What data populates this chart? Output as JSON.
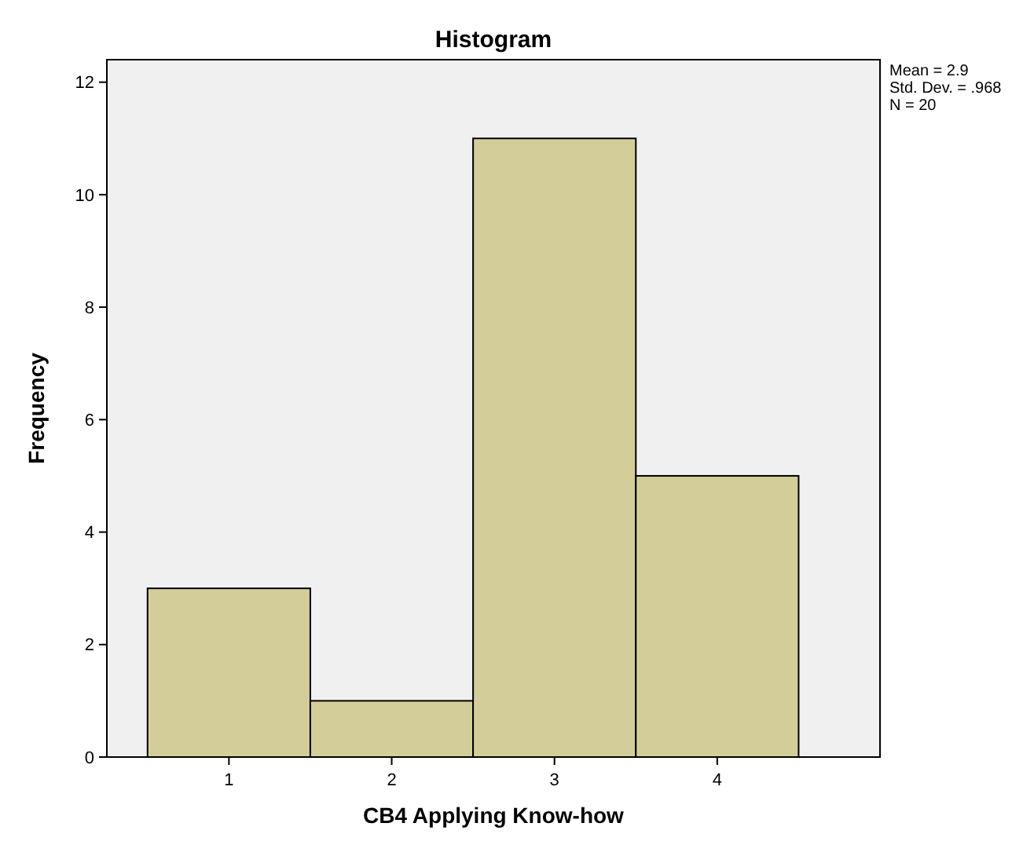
{
  "chart_data": {
    "type": "histogram",
    "title": "Histogram",
    "xlabel": "CB4 Applying Know-how",
    "ylabel": "Frequency",
    "bins": [
      0.5,
      1.5,
      2.5,
      3.5,
      4.5
    ],
    "values": [
      3,
      1,
      11,
      5
    ],
    "color": "#d3ce99",
    "xlim": [
      0.25,
      5.0
    ],
    "xticks": [
      1,
      2,
      3,
      4
    ],
    "ylim": [
      0,
      12.4
    ],
    "yticks": [
      0,
      2,
      4,
      6,
      8,
      10,
      12
    ],
    "grid": false,
    "annotations": [
      "Mean = 2.9",
      "Std. Dev. = .968",
      "N = 20"
    ]
  }
}
